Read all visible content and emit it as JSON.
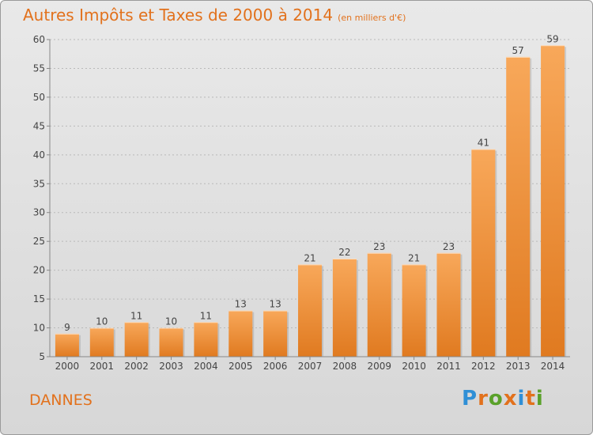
{
  "page": {
    "title": "Autres Impôts et Taxes de 2000 à 2014",
    "subtitle": "(en milliers d'€)",
    "commune": "DANNES",
    "logo": "Proxiti"
  },
  "colors": {
    "accent": "#e2711c",
    "bar_light": "#f8a85a",
    "bar_dark": "#e07a20",
    "logo_letters": [
      "#2f8fd6",
      "#e2711c",
      "#5aa12a",
      "#e2711c",
      "#2f8fd6",
      "#e2711c",
      "#5aa12a"
    ]
  },
  "chart_data": {
    "type": "bar",
    "categories": [
      "2000",
      "2001",
      "2002",
      "2003",
      "2004",
      "2005",
      "2006",
      "2007",
      "2008",
      "2009",
      "2010",
      "2011",
      "2012",
      "2013",
      "2014"
    ],
    "values": [
      9,
      10,
      11,
      10,
      11,
      13,
      13,
      21,
      22,
      23,
      21,
      23,
      41,
      57,
      59
    ],
    "data_labels": [
      "9",
      "10",
      "11",
      "10",
      "11",
      "13",
      "13",
      "21",
      "22",
      "23",
      "21",
      "23",
      "41",
      "57",
      "59"
    ],
    "yticks": [
      "5",
      "10",
      "15",
      "20",
      "25",
      "30",
      "35",
      "40",
      "45",
      "50",
      "55",
      "60"
    ],
    "ylim": [
      5,
      60
    ],
    "xlabel": "",
    "ylabel": "",
    "grid": "horizontal dashed"
  }
}
